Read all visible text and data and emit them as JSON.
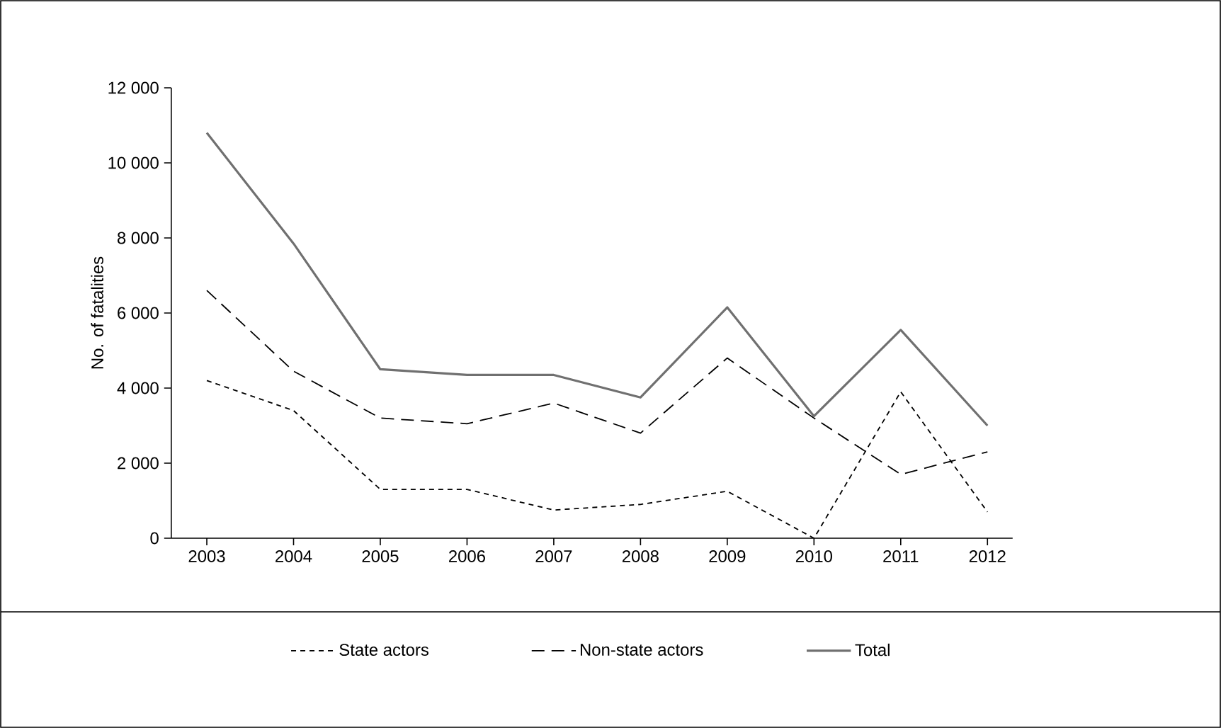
{
  "chart_data": {
    "type": "line",
    "ylabel": "No. of fatalities",
    "categories": [
      "2003",
      "2004",
      "2005",
      "2006",
      "2007",
      "2008",
      "2009",
      "2010",
      "2011",
      "2012"
    ],
    "series": [
      {
        "name": "State actors",
        "color": "#000000",
        "line_style": "dotted",
        "values": [
          4200,
          3400,
          1300,
          1300,
          750,
          900,
          1250,
          0,
          3900,
          700
        ]
      },
      {
        "name": "Non-state actors",
        "color": "#000000",
        "line_style": "dashed",
        "values": [
          6600,
          4450,
          3200,
          3050,
          3600,
          2800,
          4800,
          3200,
          1700,
          2300
        ]
      },
      {
        "name": "Total",
        "color": "#707070",
        "line_style": "solid",
        "values": [
          10800,
          7850,
          4500,
          4350,
          4350,
          3750,
          6150,
          3250,
          5550,
          3000
        ]
      }
    ],
    "ylim": [
      0,
      12000
    ],
    "yticks": [
      0,
      {
        "value": 2000,
        "label": "2 000"
      },
      {
        "value": 4000,
        "label": "4 000"
      },
      {
        "value": 6000,
        "label": "6 000"
      },
      {
        "value": 8000,
        "label": "8 000"
      },
      {
        "value": 10000,
        "label": "10 000"
      },
      {
        "value": 12000,
        "label": "12 000"
      }
    ],
    "grid": false,
    "legend": "bottom",
    "marker": "none"
  }
}
